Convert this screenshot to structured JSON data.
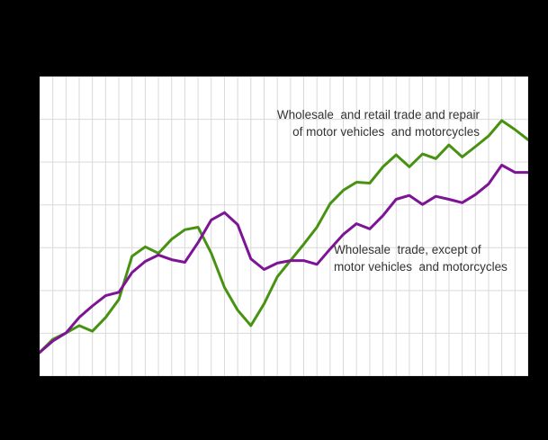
{
  "window": {
    "background_color": "#000000",
    "title_visible": false,
    "axis_labels_visible": false
  },
  "plot": {
    "background_color": "#ffffff",
    "gridline_color": "#d9d9d9",
    "annotation_text_color": "#333333"
  },
  "chart_data": {
    "type": "line",
    "title": "",
    "xlabel": "",
    "ylabel": "",
    "x": [
      1,
      2,
      3,
      4,
      5,
      6,
      7,
      8,
      9,
      10,
      11,
      12,
      13,
      14,
      15,
      16,
      17,
      18,
      19,
      20,
      21,
      22,
      23,
      24,
      25,
      26,
      27,
      28,
      29,
      30,
      31,
      32,
      33,
      34,
      35,
      36,
      37,
      38
    ],
    "x_axis": {
      "tick_labels_visible": false,
      "gridlines": true,
      "points": 38
    },
    "y_axis": {
      "tick_labels_visible": false,
      "gridlines": true,
      "min": 50,
      "max": 120,
      "gridline_step": 10
    },
    "legend_position": "inline-annotations",
    "series": [
      {
        "name": "Wholesale and retail trade and repair of motor vehicles and motorcycles",
        "color": "#489212",
        "values": [
          55.5,
          58.6,
          60.1,
          61.8,
          60.5,
          63.7,
          67.9,
          78.0,
          80.2,
          78.7,
          82.0,
          84.2,
          84.8,
          78.7,
          70.7,
          65.4,
          61.8,
          66.9,
          73.2,
          77.0,
          80.8,
          84.8,
          90.3,
          93.4,
          95.3,
          95.1,
          98.9,
          101.7,
          98.9,
          101.9,
          100.8,
          104.0,
          101.2,
          103.6,
          106.1,
          109.7,
          107.6,
          105.2
        ]
      },
      {
        "name": "Wholesale trade, except of motor vehicles and motorcycles",
        "color": "#7d1496",
        "values": [
          55.5,
          58.2,
          60.1,
          63.7,
          66.4,
          68.8,
          69.6,
          74.2,
          76.8,
          78.3,
          77.2,
          76.6,
          81.2,
          86.5,
          88.2,
          85.4,
          77.4,
          74.9,
          76.4,
          77.0,
          77.0,
          76.1,
          79.7,
          83.1,
          85.6,
          84.4,
          87.5,
          91.3,
          92.2,
          90.1,
          92.0,
          91.3,
          90.5,
          92.4,
          94.9,
          99.3,
          97.6,
          97.6
        ]
      }
    ],
    "annotations": [
      {
        "series": "Wholesale and retail trade and repair of motor vehicles and motorcycles",
        "line1": "Wholesale  and retail trade and repair",
        "line2": "of motor vehicles  and motorcycles",
        "align": "right"
      },
      {
        "series": "Wholesale trade, except of motor vehicles and motorcycles",
        "line1": "Wholesale  trade, except of",
        "line2": "motor vehicles  and motorcycles",
        "align": "left"
      }
    ]
  }
}
